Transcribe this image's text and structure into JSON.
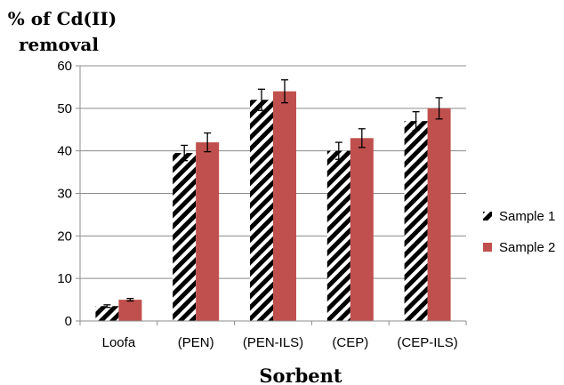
{
  "chart_data": {
    "type": "bar",
    "categories": [
      "Loofa",
      "(PEN)",
      "(PEN-ILS)",
      "(CEP)",
      "(CEP-ILS)"
    ],
    "series": [
      {
        "name": "Sample 1",
        "values": [
          3.5,
          39.5,
          52,
          40,
          47
        ],
        "errors": [
          0.3,
          1.8,
          2.5,
          2,
          2.2
        ],
        "color": "#000000",
        "pattern": "diagonal-stripes"
      },
      {
        "name": "Sample 2",
        "values": [
          5,
          42,
          54,
          43,
          50
        ],
        "errors": [
          0.3,
          2.2,
          2.7,
          2.2,
          2.5
        ],
        "color": "#c0504d",
        "pattern": "solid"
      }
    ],
    "ylabel": [
      "% of Cd(II)",
      "removal"
    ],
    "xlabel": "Sorbent",
    "ylim": [
      0,
      60
    ],
    "yticks": [
      0,
      10,
      20,
      30,
      40,
      50,
      60
    ],
    "grid": true,
    "legend": "right"
  }
}
